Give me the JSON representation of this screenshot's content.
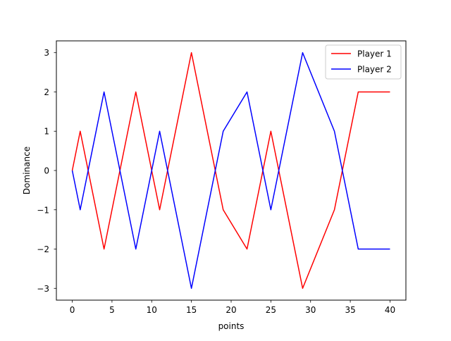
{
  "chart_data": {
    "type": "line",
    "title": "",
    "xlabel": "points",
    "ylabel": "Dominance",
    "xlim": [
      -2,
      42
    ],
    "ylim": [
      -3.3,
      3.3
    ],
    "xticks": [
      0,
      5,
      10,
      15,
      20,
      25,
      30,
      35,
      40
    ],
    "yticks": [
      -3,
      -2,
      -1,
      0,
      1,
      2,
      3
    ],
    "grid": false,
    "legend_position": "top-right",
    "series": [
      {
        "name": "Player 1",
        "color": "#ff0000",
        "x": [
          0,
          1,
          4,
          8,
          11,
          15,
          19,
          22,
          25,
          29,
          33,
          36,
          40
        ],
        "y": [
          0,
          1,
          -2,
          2,
          -1,
          3,
          -1,
          -2,
          1,
          -3,
          -1,
          2,
          2
        ]
      },
      {
        "name": "Player 2",
        "color": "#0000ff",
        "x": [
          0,
          1,
          4,
          8,
          11,
          15,
          19,
          22,
          25,
          29,
          33,
          36,
          40
        ],
        "y": [
          0,
          -1,
          2,
          -2,
          1,
          -3,
          1,
          2,
          -1,
          3,
          1,
          -2,
          -2
        ]
      }
    ]
  }
}
